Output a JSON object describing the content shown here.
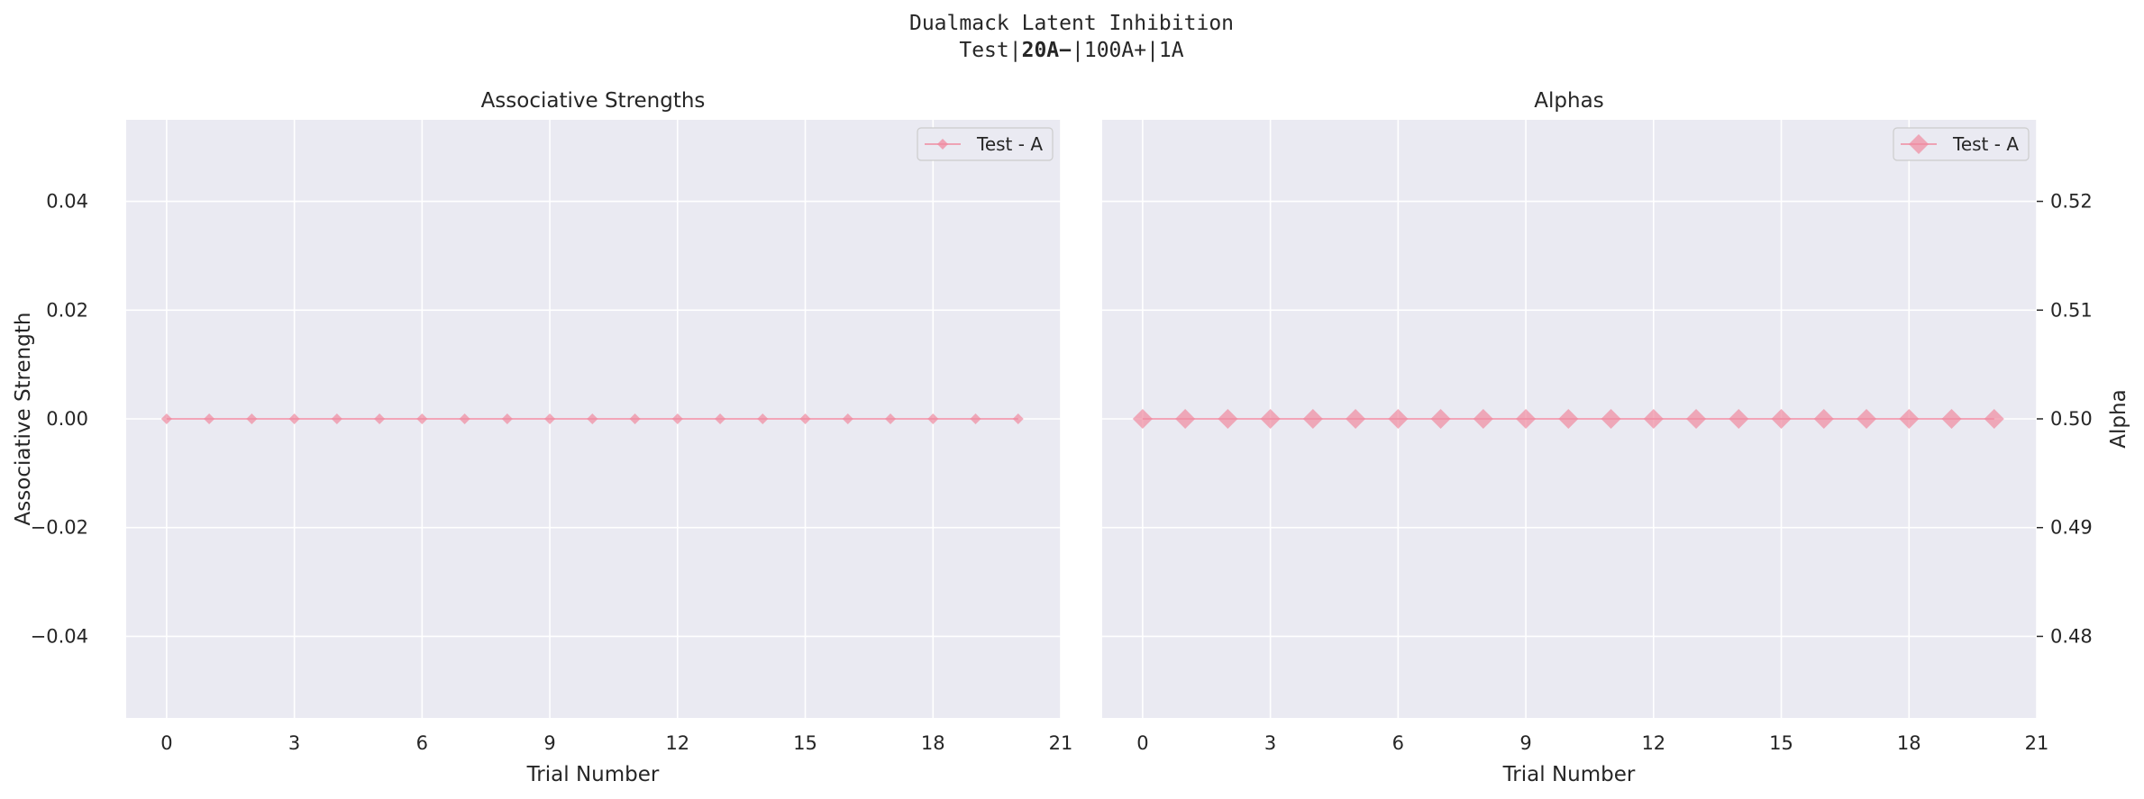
{
  "figure": {
    "title_line1": "Dualmack Latent Inhibition",
    "title_line2_prefix": "Test|",
    "title_line2_bold": "20A−",
    "title_line2_suffix": "|100A+|1A"
  },
  "chart_data": [
    {
      "type": "line",
      "title": "Associative Strengths",
      "xlabel": "Trial Number",
      "ylabel": "Associative Strength",
      "xlim": [
        -0.95,
        21
      ],
      "ylim": [
        -0.055,
        0.055
      ],
      "xticks": [
        0,
        3,
        6,
        9,
        12,
        15,
        18,
        21
      ],
      "yticks": [
        -0.04,
        -0.02,
        0.0,
        0.02,
        0.04
      ],
      "ytick_labels": [
        "−0.04",
        "−0.02",
        "0.00",
        "0.02",
        "0.04"
      ],
      "grid": true,
      "y_axis_side": "left",
      "legend_position": "top-right",
      "series": [
        {
          "name": "Test - A",
          "color": "#f08aa0",
          "marker": "diamond",
          "x": [
            0,
            1,
            2,
            3,
            4,
            5,
            6,
            7,
            8,
            9,
            10,
            11,
            12,
            13,
            14,
            15,
            16,
            17,
            18,
            19,
            20
          ],
          "values": [
            0,
            0,
            0,
            0,
            0,
            0,
            0,
            0,
            0,
            0,
            0,
            0,
            0,
            0,
            0,
            0,
            0,
            0,
            0,
            0,
            0
          ]
        }
      ]
    },
    {
      "type": "line",
      "title": "Alphas",
      "xlabel": "Trial Number",
      "ylabel": "Alpha",
      "xlim": [
        -0.95,
        21
      ],
      "ylim": [
        0.4725,
        0.5275
      ],
      "xticks": [
        0,
        3,
        6,
        9,
        12,
        15,
        18,
        21
      ],
      "yticks": [
        0.48,
        0.49,
        0.5,
        0.51,
        0.52
      ],
      "ytick_labels": [
        "0.48",
        "0.49",
        "0.50",
        "0.51",
        "0.52"
      ],
      "grid": true,
      "y_axis_side": "right",
      "legend_position": "top-right",
      "series": [
        {
          "name": "Test - A",
          "color": "#f08aa0",
          "marker": "diamond",
          "x": [
            0,
            1,
            2,
            3,
            4,
            5,
            6,
            7,
            8,
            9,
            10,
            11,
            12,
            13,
            14,
            15,
            16,
            17,
            18,
            19,
            20
          ],
          "values": [
            0.5,
            0.5,
            0.5,
            0.5,
            0.5,
            0.5,
            0.5,
            0.5,
            0.5,
            0.5,
            0.5,
            0.5,
            0.5,
            0.5,
            0.5,
            0.5,
            0.5,
            0.5,
            0.5,
            0.5,
            0.5
          ]
        }
      ]
    }
  ]
}
